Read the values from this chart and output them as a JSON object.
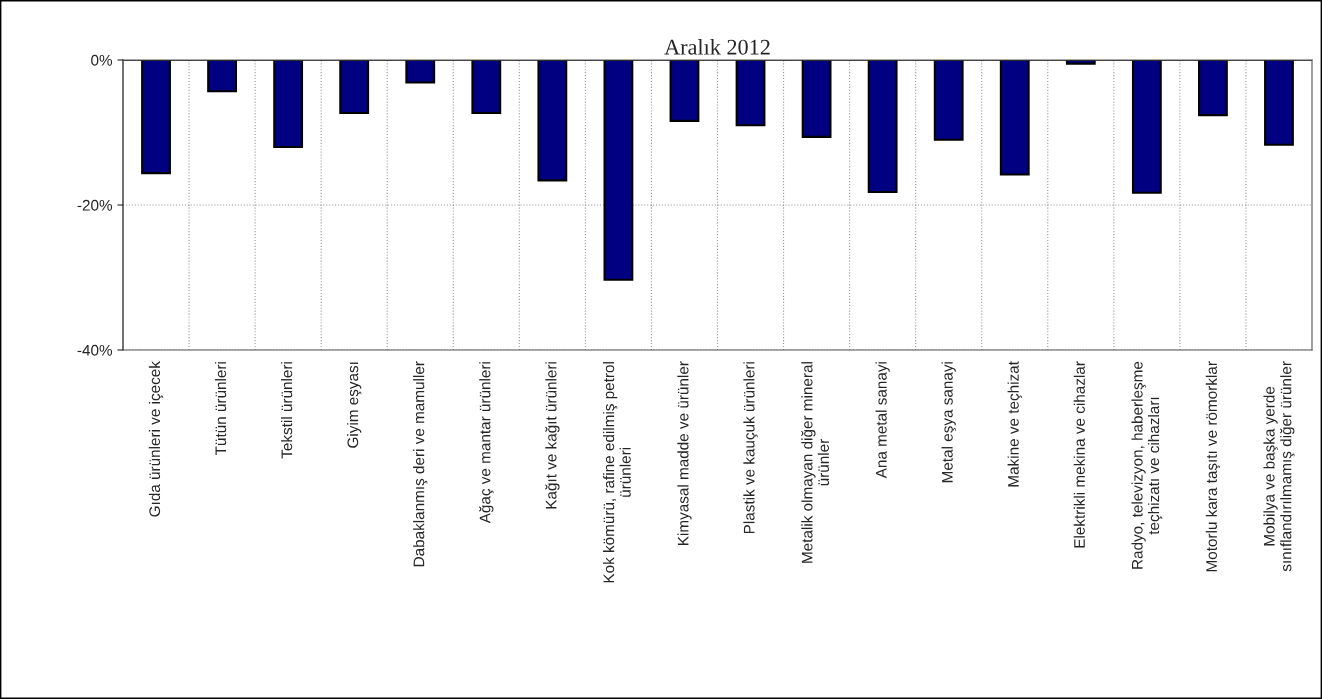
{
  "chart_data": {
    "type": "bar",
    "title": "Aralık 2012",
    "categories": [
      "Gıda ürünleri ve içecek",
      "Tütün ürünleri",
      "Tekstil ürünleri",
      "Giyim eşyası",
      "Dabaklanmış deri ve mamuller",
      "Ağaç ve mantar ürünleri",
      "Kağıt ve kağıt ürünleri",
      "Kok kömürü, rafine edilmiş petrol\nürünleri",
      "Kimyasal madde ve ürünler",
      "Plastik ve kauçuk ürünleri",
      "Metalik olmayan diğer mineral\nürünler",
      "Ana metal sanayi",
      "Metal eşya sanayi",
      "Makine ve teçhizat",
      "Elektrikli mekina ve cihazlar",
      "Radyo, televizyon, haberleşme\nteçhizatı ve cihazları",
      "Motorlu kara taşıtı ve römorklar",
      "Mobilya ve başka yerde\nsınıflandırılmamış diğer ürünler"
    ],
    "values": [
      -15.6,
      -4.3,
      -12.0,
      -7.3,
      -3.1,
      -7.3,
      -16.6,
      -30.3,
      -8.4,
      -9.0,
      -10.6,
      -18.2,
      -11.0,
      -15.8,
      -0.5,
      -18.3,
      -7.6,
      -11.7
    ],
    "color": "#000080",
    "ylim": [
      -40,
      0
    ],
    "yticks": [
      {
        "value": 0,
        "label": "0%"
      },
      {
        "value": -20,
        "label": "-20%"
      },
      {
        "value": -40,
        "label": "-40%"
      }
    ],
    "grid": true
  }
}
